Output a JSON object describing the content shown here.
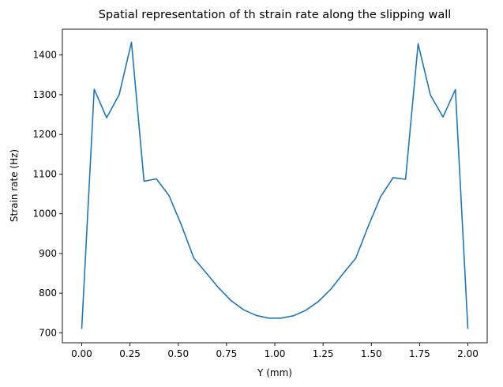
{
  "chart_data": {
    "type": "line",
    "title": "Spatial representation of th strain rate along the slipping wall",
    "xlabel": "Y (mm)",
    "ylabel": "Strain rate (Hz)",
    "xlim": [
      -0.1,
      2.1
    ],
    "ylim": [
      675,
      1465
    ],
    "xticks": [
      0.0,
      0.25,
      0.5,
      0.75,
      1.0,
      1.25,
      1.5,
      1.75,
      2.0
    ],
    "xtick_labels": [
      "0.00",
      "0.25",
      "0.50",
      "0.75",
      "1.00",
      "1.25",
      "1.50",
      "1.75",
      "2.00"
    ],
    "yticks": [
      700,
      800,
      900,
      1000,
      1100,
      1200,
      1300,
      1400
    ],
    "ytick_labels": [
      "700",
      "800",
      "900",
      "1000",
      "1100",
      "1200",
      "1300",
      "1400"
    ],
    "grid": false,
    "series": [
      {
        "color": "#1f77b4",
        "x": [
          0.0,
          0.065,
          0.129,
          0.194,
          0.258,
          0.323,
          0.387,
          0.452,
          0.516,
          0.581,
          0.645,
          0.71,
          0.774,
          0.839,
          0.903,
          0.968,
          1.032,
          1.097,
          1.161,
          1.226,
          1.29,
          1.355,
          1.419,
          1.484,
          1.548,
          1.613,
          1.677,
          1.742,
          1.806,
          1.871,
          1.935,
          2.0
        ],
        "y": [
          710,
          1314,
          1242,
          1300,
          1432,
          1082,
          1088,
          1046,
          972,
          888,
          851,
          813,
          781,
          758,
          744,
          737,
          737,
          743,
          757,
          779,
          810,
          850,
          888,
          969,
          1043,
          1091,
          1087,
          1428,
          1299,
          1244,
          1313,
          710
        ]
      }
    ]
  }
}
